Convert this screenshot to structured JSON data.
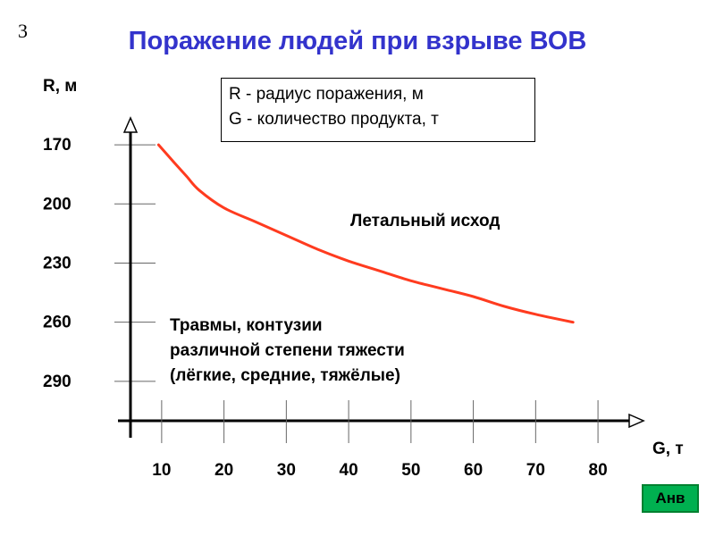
{
  "slide_number": "3",
  "title": "Поражение людей при взрыве ВОВ",
  "legend": {
    "line1": "R - радиус поражения, м",
    "line2": "G - количество продукта, т"
  },
  "region_labels": {
    "upper": "Летальный исход",
    "lower": [
      "Травмы, контузии",
      "различной степени тяжести",
      "(лёгкие, средние, тяжёлые)"
    ]
  },
  "nav_button": "Анв",
  "colors": {
    "title": "#3333cc",
    "curve": "#ff3b1f",
    "button": "#00b050"
  },
  "chart_data": {
    "type": "line",
    "title": "",
    "xlabel": "G, т",
    "ylabel": "R, м",
    "x_ticks": [
      10,
      20,
      30,
      40,
      50,
      60,
      70,
      80
    ],
    "y_ticks": [
      170,
      200,
      230,
      260,
      290
    ],
    "xlim": [
      5,
      83
    ],
    "ylim": [
      310,
      160
    ],
    "y_direction": "inverted",
    "series": [
      {
        "x": [
          9.5,
          12,
          14,
          16,
          20,
          25,
          30,
          35,
          40,
          45,
          50,
          55,
          60,
          65,
          70,
          76
        ],
        "y": [
          170,
          179,
          186,
          193,
          202,
          209,
          216,
          223,
          229,
          234,
          239,
          243,
          247,
          252,
          256,
          260
        ]
      }
    ]
  }
}
